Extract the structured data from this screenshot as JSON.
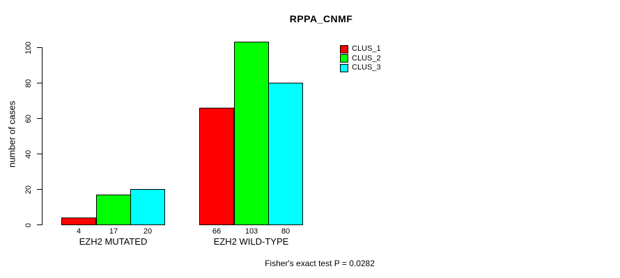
{
  "title": "RPPA_CNMF",
  "chart_data": {
    "type": "bar",
    "title": "RPPA_CNMF",
    "xlabel": "",
    "ylabel": "number of cases",
    "categories": [
      "EZH2 MUTATED",
      "EZH2 WILD-TYPE"
    ],
    "series": [
      {
        "name": "CLUS_1",
        "color": "#ff0000",
        "values": [
          4,
          66
        ]
      },
      {
        "name": "CLUS_2",
        "color": "#00ff00",
        "values": [
          17,
          103
        ]
      },
      {
        "name": "CLUS_3",
        "color": "#00ffff",
        "values": [
          20,
          80
        ]
      }
    ],
    "bar_value_labels": [
      [
        "4",
        "17",
        "20"
      ],
      [
        "66",
        "103",
        "80"
      ]
    ],
    "y_ticks": [
      0,
      20,
      40,
      60,
      80,
      100
    ],
    "ylim": [
      0,
      103
    ],
    "grid": false,
    "legend_position": "top-right",
    "bar_border_color": "#000000",
    "background_color": "#ffffff",
    "annotation": "Fisher's exact test P = 0.0282"
  }
}
